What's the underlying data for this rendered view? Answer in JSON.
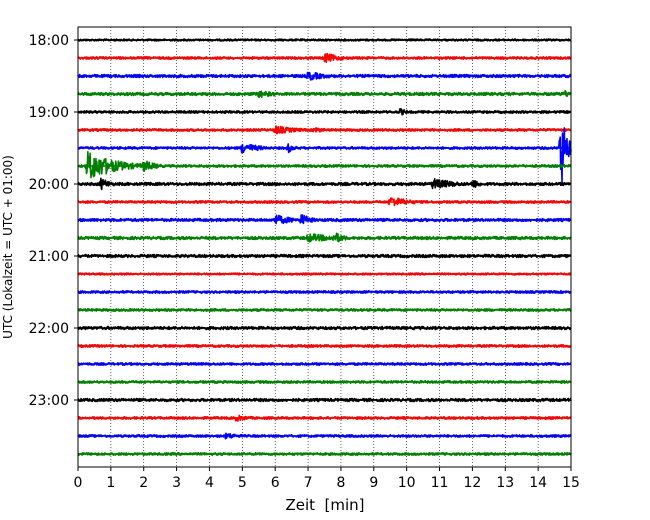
{
  "chart_data": {
    "type": "line",
    "title": "",
    "xlabel": "Zeit  [min]",
    "ylabel": "UTC (Lokalzeit = UTC + 01:00)",
    "xlim": [
      0,
      15
    ],
    "x_ticks": [
      0,
      1,
      2,
      3,
      4,
      5,
      6,
      7,
      8,
      9,
      10,
      11,
      12,
      13,
      14,
      15
    ],
    "x_tick_labels": [
      "0",
      "1",
      "2",
      "3",
      "4",
      "5",
      "6",
      "7",
      "8",
      "9",
      "10",
      "11",
      "12",
      "13",
      "14",
      "15"
    ],
    "y_tick_labels": [
      "18:00",
      "19:00",
      "20:00",
      "21:00",
      "22:00",
      "23:00"
    ],
    "y_tick_times": [
      "18:00",
      "19:00",
      "20:00",
      "21:00",
      "22:00",
      "23:00"
    ],
    "trace_interval_minutes": 15,
    "vertical_grid": true,
    "grid_style": "dotted",
    "colors": [
      "#000000",
      "#ff0000",
      "#0000ff",
      "#008000"
    ],
    "traces": [
      {
        "start": "18:00",
        "color": "#000000",
        "noise": 0.4,
        "events": []
      },
      {
        "start": "18:15",
        "color": "#ff0000",
        "noise": 0.5,
        "events": [
          {
            "t": 7.5,
            "amp": 2.2,
            "dur": 1.0
          }
        ]
      },
      {
        "start": "18:30",
        "color": "#0000ff",
        "noise": 0.6,
        "events": [
          {
            "t": 7.0,
            "amp": 2.0,
            "dur": 1.2
          }
        ]
      },
      {
        "start": "18:45",
        "color": "#008000",
        "noise": 0.6,
        "events": [
          {
            "t": 5.5,
            "amp": 1.6,
            "dur": 1.2
          },
          {
            "t": 14.8,
            "amp": 1.8,
            "dur": 0.4
          }
        ]
      },
      {
        "start": "19:00",
        "color": "#000000",
        "noise": 0.5,
        "events": [
          {
            "t": 9.8,
            "amp": 1.5,
            "dur": 0.5
          }
        ]
      },
      {
        "start": "19:15",
        "color": "#ff0000",
        "noise": 0.5,
        "events": [
          {
            "t": 6.0,
            "amp": 1.8,
            "dur": 1.5
          },
          {
            "t": 7.2,
            "amp": 1.5,
            "dur": 0.6
          }
        ]
      },
      {
        "start": "19:30",
        "color": "#0000ff",
        "noise": 0.5,
        "events": [
          {
            "t": 5.0,
            "amp": 2.5,
            "dur": 1.0
          },
          {
            "t": 6.4,
            "amp": 2.0,
            "dur": 0.4
          },
          {
            "t": 14.7,
            "amp": 18,
            "dur": 0.3
          }
        ]
      },
      {
        "start": "19:45",
        "color": "#008000",
        "noise": 0.5,
        "events": [
          {
            "t": 0.3,
            "amp": 6.5,
            "dur": 1.6
          },
          {
            "t": 2.0,
            "amp": 2.5,
            "dur": 0.8
          }
        ]
      },
      {
        "start": "20:00",
        "color": "#000000",
        "noise": 0.6,
        "events": [
          {
            "t": 0.7,
            "amp": 2.6,
            "dur": 0.6
          },
          {
            "t": 10.8,
            "amp": 2.4,
            "dur": 1.5
          },
          {
            "t": 12.0,
            "amp": 2.0,
            "dur": 0.6
          }
        ]
      },
      {
        "start": "20:15",
        "color": "#ff0000",
        "noise": 0.5,
        "events": [
          {
            "t": 9.5,
            "amp": 2.4,
            "dur": 1.2
          }
        ]
      },
      {
        "start": "20:30",
        "color": "#0000ff",
        "noise": 0.6,
        "events": [
          {
            "t": 6.0,
            "amp": 2.2,
            "dur": 1.2
          },
          {
            "t": 6.8,
            "amp": 2.6,
            "dur": 0.6
          }
        ]
      },
      {
        "start": "20:45",
        "color": "#008000",
        "noise": 0.6,
        "events": [
          {
            "t": 7.0,
            "amp": 2.0,
            "dur": 2.0
          },
          {
            "t": 7.8,
            "amp": 2.6,
            "dur": 0.6
          }
        ]
      },
      {
        "start": "21:00",
        "color": "#000000",
        "noise": 0.6,
        "events": []
      },
      {
        "start": "21:15",
        "color": "#ff0000",
        "noise": 0.4,
        "events": []
      },
      {
        "start": "21:30",
        "color": "#0000ff",
        "noise": 0.5,
        "events": []
      },
      {
        "start": "21:45",
        "color": "#008000",
        "noise": 0.5,
        "events": []
      },
      {
        "start": "22:00",
        "color": "#000000",
        "noise": 0.6,
        "events": []
      },
      {
        "start": "22:15",
        "color": "#ff0000",
        "noise": 0.5,
        "events": []
      },
      {
        "start": "22:30",
        "color": "#0000ff",
        "noise": 0.5,
        "events": []
      },
      {
        "start": "22:45",
        "color": "#008000",
        "noise": 0.5,
        "events": []
      },
      {
        "start": "23:00",
        "color": "#000000",
        "noise": 0.6,
        "events": []
      },
      {
        "start": "23:15",
        "color": "#ff0000",
        "noise": 0.5,
        "events": [
          {
            "t": 4.8,
            "amp": 1.4,
            "dur": 1.0
          }
        ]
      },
      {
        "start": "23:30",
        "color": "#0000ff",
        "noise": 0.5,
        "events": [
          {
            "t": 4.5,
            "amp": 1.4,
            "dur": 1.0
          }
        ]
      },
      {
        "start": "23:45",
        "color": "#008000",
        "noise": 0.5,
        "events": []
      }
    ]
  }
}
